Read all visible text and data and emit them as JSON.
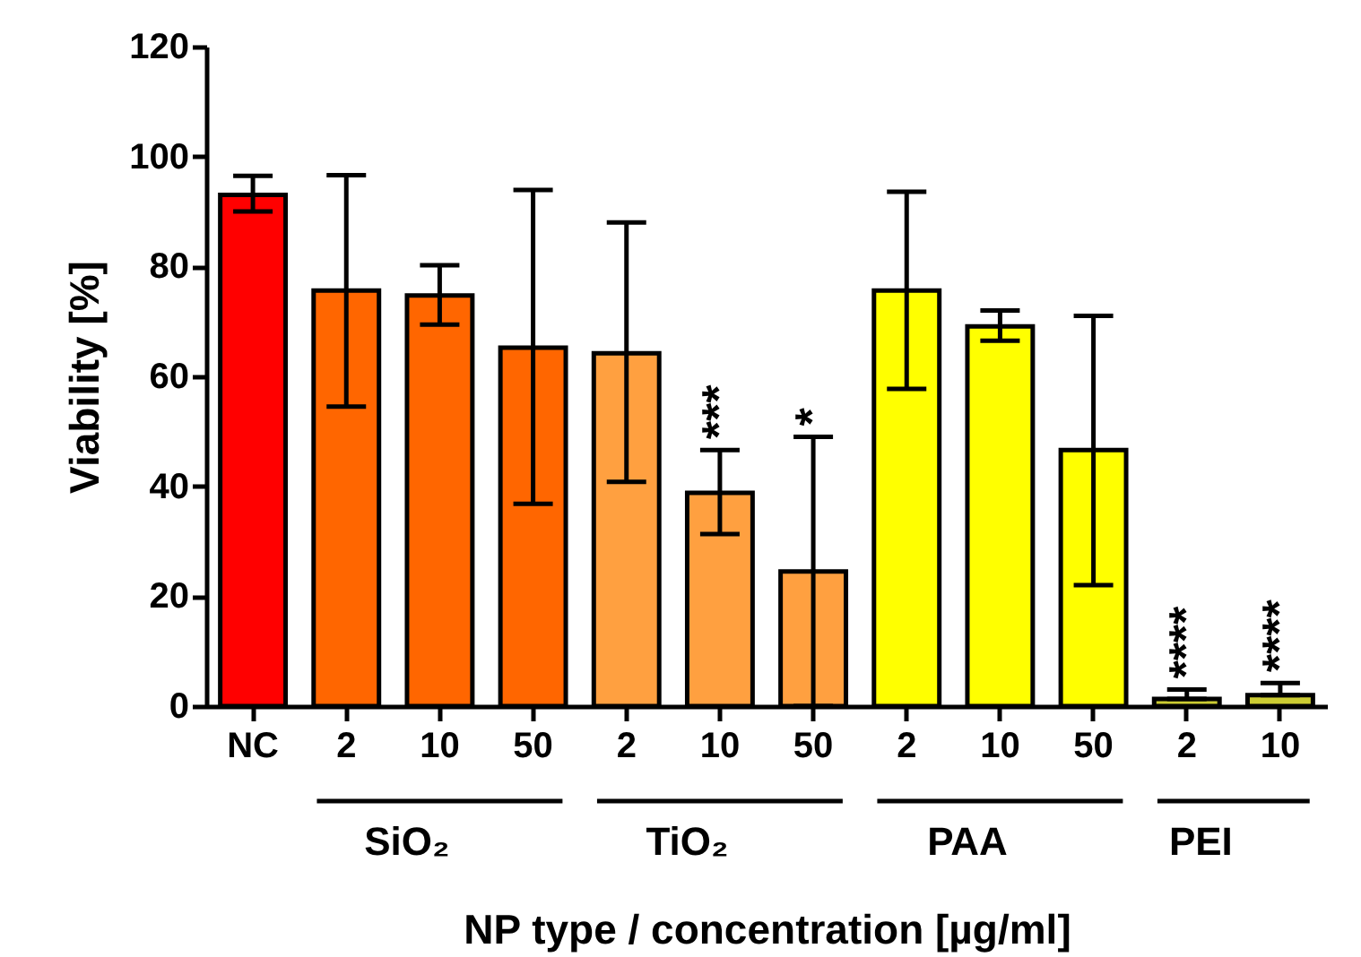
{
  "chart_data": {
    "type": "bar",
    "xlabel": "NP type / concentration [µg/ml]",
    "ylabel": "Viability [%]",
    "categories": [
      "NC",
      "2",
      "10",
      "50",
      "2",
      "10",
      "50",
      "2",
      "10",
      "50",
      "2",
      "10"
    ],
    "values": [
      93,
      75.6,
      74.7,
      65.2,
      64.2,
      38.8,
      24.5,
      75.6,
      69.1,
      46.6,
      1.3,
      2
    ],
    "colors": [
      "#ff0000",
      "#ff6600",
      "#ff6600",
      "#ff6600",
      "#ffa040",
      "#ffa040",
      "#ffa040",
      "#ffff00",
      "#ffff00",
      "#ffff00",
      "#cccc33",
      "#cccc33"
    ],
    "errors": [
      [
        90,
        96.5
      ],
      [
        54.5,
        96.6
      ],
      [
        69.4,
        80.2
      ],
      [
        36.8,
        93.9
      ],
      [
        40.8,
        88
      ],
      [
        31.3,
        46.6
      ],
      [
        0,
        49
      ],
      [
        57.7,
        93.6
      ],
      [
        66.5,
        72
      ],
      [
        22,
        71
      ],
      [
        1.3,
        3
      ],
      [
        2,
        4.2
      ]
    ],
    "value_labels": [
      null,
      null,
      null,
      null,
      null,
      "***",
      "*",
      null,
      null,
      null,
      "****",
      "****"
    ],
    "annotations": [
      "SiO₂",
      "TiO₂",
      "PAA",
      "PEI"
    ],
    "ylim": [
      0,
      120
    ],
    "yticks": [
      0,
      20,
      40,
      60,
      80,
      100,
      120
    ],
    "grid": false
  }
}
